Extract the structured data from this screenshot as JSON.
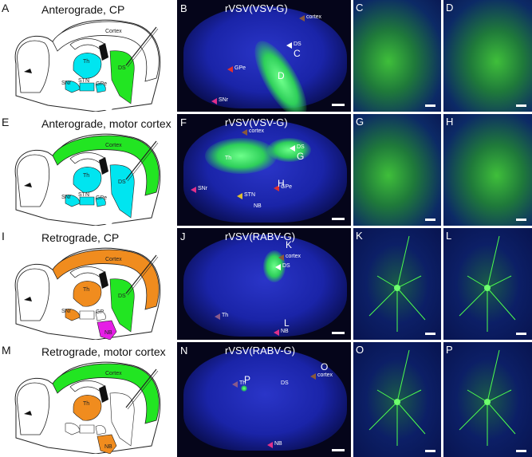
{
  "colors": {
    "cyan": "#00e5f0",
    "green": "#22e522",
    "orange": "#f08c1e",
    "magenta": "#e61ee6",
    "tissue_blue": "#1a24a8",
    "label_green": "#2ecf5a"
  },
  "rows": [
    {
      "schematic": {
        "letter": "A",
        "title": "Anterograde, CP",
        "regions": {
          "cortex": "none",
          "th": "cyan",
          "ds": "green",
          "snr": "cyan",
          "stn": "cyan",
          "gpe": "cyan",
          "nb": "none"
        },
        "labels": [
          "Cortex",
          "Th",
          "DS",
          "SNr",
          "STN",
          "GPe"
        ]
      },
      "section": {
        "letter": "B",
        "title": "rVSV(VSV-G)",
        "labels": [
          {
            "t": "cortex",
            "arrow": "#8a5a3a"
          },
          {
            "t": "DS",
            "arrow": "#ffffff"
          },
          {
            "t": "GPe",
            "arrow": "#e03030"
          },
          {
            "t": "SNr",
            "arrow": "#e0308a"
          }
        ],
        "markers": [
          "C",
          "D"
        ]
      },
      "micro": [
        {
          "letter": "C"
        },
        {
          "letter": "D"
        }
      ]
    },
    {
      "schematic": {
        "letter": "E",
        "title": "Anterograde, motor cortex",
        "regions": {
          "cortex": "green",
          "th": "cyan",
          "ds": "cyan",
          "snr": "cyan",
          "stn": "cyan",
          "gpe": "cyan",
          "nb": "none"
        },
        "labels": [
          "Cortex",
          "Th",
          "DS",
          "SNr",
          "STN",
          "GPe"
        ]
      },
      "section": {
        "letter": "F",
        "title": "rVSV(VSV-G)",
        "labels": [
          {
            "t": "cortex",
            "arrow": "#8a5a3a"
          },
          {
            "t": "DS",
            "arrow": "#ffffff"
          },
          {
            "t": "GPe",
            "arrow": "#e03030"
          },
          {
            "t": "SNr",
            "arrow": "#e0308a"
          },
          {
            "t": "STN",
            "arrow": "#e0c030"
          },
          {
            "t": "Th",
            "arrow": ""
          },
          {
            "t": "NB",
            "arrow": ""
          }
        ],
        "markers": [
          "G",
          "H"
        ]
      },
      "micro": [
        {
          "letter": "G"
        },
        {
          "letter": "H"
        }
      ]
    },
    {
      "schematic": {
        "letter": "I",
        "title": "Retrograde, CP",
        "regions": {
          "cortex": "orange",
          "th": "orange",
          "ds": "green",
          "snr": "orange",
          "stn": "none",
          "gpe": "none",
          "nb": "magenta"
        },
        "labels": [
          "Cortex",
          "Th",
          "DS",
          "SNr",
          "GP",
          "NB"
        ]
      },
      "section": {
        "letter": "J",
        "title": "rVSV(RABV-G)",
        "labels": [
          {
            "t": "cortex",
            "arrow": "#8a5a3a"
          },
          {
            "t": "DS",
            "arrow": "#ffffff"
          },
          {
            "t": "Th",
            "arrow": "#8a5a8a"
          },
          {
            "t": "NB",
            "arrow": "#e0308a"
          }
        ],
        "markers": [
          "K",
          "L"
        ]
      },
      "micro": [
        {
          "letter": "K"
        },
        {
          "letter": "L"
        }
      ]
    },
    {
      "schematic": {
        "letter": "M",
        "title": "Retrograde, motor cortex",
        "regions": {
          "cortex": "green",
          "th": "orange",
          "ds": "none",
          "snr": "none",
          "stn": "none",
          "gpe": "none",
          "nb": "orange"
        },
        "labels": [
          "Cortex",
          "Th",
          "NB"
        ]
      },
      "section": {
        "letter": "N",
        "title": "rVSV(RABV-G)",
        "labels": [
          {
            "t": "cortex",
            "arrow": "#8a5a3a"
          },
          {
            "t": "DS",
            "arrow": ""
          },
          {
            "t": "Th",
            "arrow": "#8a5a8a"
          },
          {
            "t": "NB",
            "arrow": "#e0308a"
          }
        ],
        "markers": [
          "O",
          "P"
        ]
      },
      "micro": [
        {
          "letter": "O"
        },
        {
          "letter": "P"
        }
      ]
    }
  ]
}
